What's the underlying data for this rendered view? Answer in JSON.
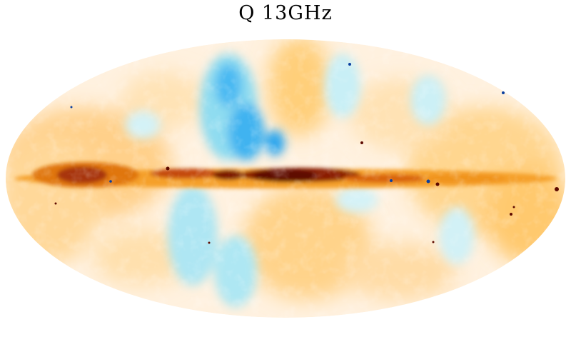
{
  "title": "Q 13GHz",
  "colors": {
    "background": "#ffffff",
    "neutral": "#fff6ec",
    "warm_light": "#ffe3b8",
    "warm": "#ffc25a",
    "orange": "#f39a14",
    "dark_orange": "#c9560a",
    "dark_red": "#6b0d00",
    "cyan_light": "#bdeef4",
    "cyan": "#6fd4ee",
    "blue": "#1e9ff0",
    "deep_blue": "#0a3fa0"
  }
}
